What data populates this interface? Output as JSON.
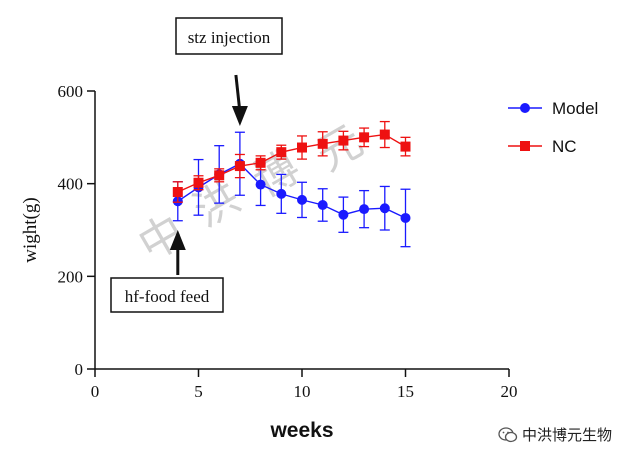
{
  "chart_data": {
    "type": "line",
    "xlabel": "weeks",
    "ylabel": "wight(g)",
    "xlim": [
      0,
      20
    ],
    "ylim": [
      0,
      600
    ],
    "xticks": [
      0,
      5,
      10,
      15,
      20
    ],
    "yticks": [
      0,
      200,
      400,
      600
    ],
    "grid": false,
    "legend_position": "top-right",
    "series": [
      {
        "name": "Model",
        "color": "#1a1aff",
        "marker": "circle",
        "x": [
          4,
          5,
          6,
          7,
          8,
          9,
          10,
          11,
          12,
          13,
          14,
          15
        ],
        "y": [
          362,
          392,
          420,
          443,
          398,
          378,
          365,
          354,
          333,
          345,
          347,
          326
        ],
        "err": [
          42,
          60,
          62,
          68,
          45,
          42,
          38,
          35,
          38,
          40,
          47,
          62
        ]
      },
      {
        "name": "NC",
        "color": "#ee1111",
        "marker": "square",
        "x": [
          4,
          5,
          6,
          7,
          8,
          9,
          10,
          11,
          12,
          13,
          14,
          15
        ],
        "y": [
          382,
          402,
          418,
          438,
          445,
          468,
          478,
          486,
          493,
          500,
          506,
          480
        ],
        "err": [
          22,
          15,
          14,
          25,
          15,
          15,
          25,
          26,
          20,
          20,
          28,
          20
        ]
      }
    ],
    "annotations": [
      {
        "text": "stz injection",
        "x": 7,
        "direction": "down"
      },
      {
        "text": "hf-food feed",
        "x": 4,
        "direction": "up"
      }
    ]
  },
  "watermark": {
    "chars": [
      "中",
      "洪",
      "博",
      "元"
    ],
    "footer_text": "中洪博元生物",
    "logo_icon": "wechat-icon"
  }
}
